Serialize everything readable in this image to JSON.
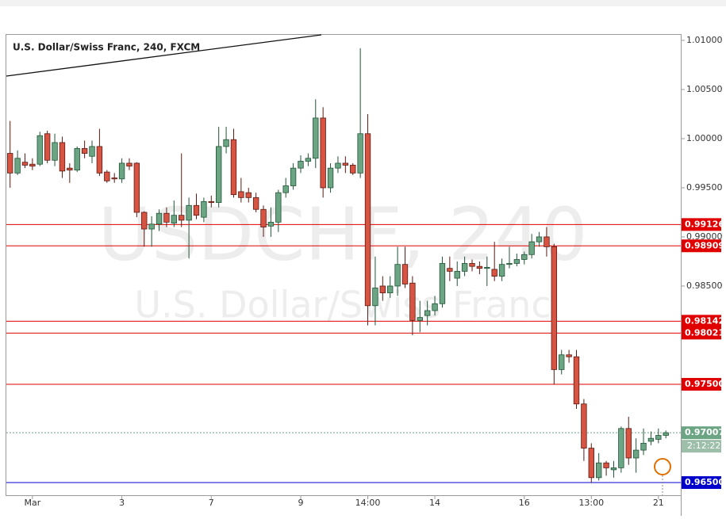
{
  "chart_data": {
    "type": "candlestick",
    "title": "U.S. Dollar/Swiss Franc, 240, FXCM",
    "watermark": "USDCHF, 240",
    "watermark_subtitle": "U.S. Dollar/Swiss Franc",
    "countdown": "2:12:22",
    "up_color": "#6ba583",
    "down_color": "#d75442",
    "open": [
      0.9985,
      0.9965,
      0.9976,
      0.9974,
      0.9974,
      1.0005,
      0.9978,
      0.9996,
      0.997,
      0.9968,
      0.999,
      0.9982,
      0.9992,
      0.9966,
      0.996,
      0.9959,
      0.9975,
      0.9975,
      0.9925,
      0.9908,
      0.9913,
      0.9924,
      0.9914,
      0.9922,
      0.9917,
      0.9932,
      0.992,
      0.9936,
      0.9935,
      0.9992,
      0.9999,
      0.9946,
      0.9945,
      0.994,
      0.9928,
      0.9911,
      0.9915,
      0.9945,
      0.9952,
      0.997,
      0.9977,
      0.998,
      1.0021,
      0.995,
      0.997,
      0.9975,
      0.9973,
      0.9965,
      1.0005,
      0.983,
      0.985,
      0.9843,
      0.985,
      0.9872,
      0.9853,
      0.9815,
      0.982,
      0.9825,
      0.9832,
      0.9868,
      0.9858,
      0.9865,
      0.9873,
      0.987,
      0.9868,
      0.9867,
      0.986,
      0.9872,
      0.9873,
      0.9877,
      0.9882,
      0.9895,
      0.99,
      0.989,
      0.9765,
      0.978,
      0.9778,
      0.973,
      0.9685,
      0.9655,
      0.967,
      0.9663,
      0.9665,
      0.9705,
      0.9675,
      0.9683,
      0.9692,
      0.9694,
      0.9698
    ],
    "high": [
      1.0018,
      0.9988,
      0.9985,
      0.998,
      1.0007,
      1.0008,
      1.0005,
      1.0002,
      0.9975,
      0.9992,
      0.9998,
      0.9998,
      1.001,
      0.9968,
      0.9965,
      0.998,
      0.998,
      0.9976,
      0.9926,
      0.9921,
      0.9928,
      0.993,
      0.9937,
      0.9985,
      0.994,
      0.9944,
      0.994,
      0.9942,
      1.0012,
      1.0012,
      1.001,
      0.996,
      0.995,
      0.9945,
      0.9932,
      0.993,
      0.9948,
      0.996,
      0.9975,
      0.9983,
      0.9985,
      1.004,
      1.0032,
      0.9975,
      0.9982,
      0.9982,
      0.9975,
      1.0092,
      1.0025,
      0.988,
      0.986,
      0.986,
      0.989,
      0.989,
      0.986,
      0.9835,
      0.9835,
      0.984,
      0.988,
      0.988,
      0.9875,
      0.988,
      0.9877,
      0.9875,
      0.988,
      0.9895,
      0.9878,
      0.989,
      0.9883,
      0.9885,
      0.9903,
      0.9905,
      0.991,
      0.9893,
      0.9785,
      0.9785,
      0.9785,
      0.9735,
      0.969,
      0.968,
      0.9672,
      0.9672,
      0.9707,
      0.9717,
      0.9695,
      0.9705,
      0.9702,
      0.9705,
      0.9703
    ],
    "low": [
      0.995,
      0.9963,
      0.997,
      0.9968,
      0.9972,
      0.9975,
      0.9972,
      0.996,
      0.9955,
      0.9966,
      0.998,
      0.9975,
      0.9962,
      0.9955,
      0.9955,
      0.9955,
      0.9968,
      0.992,
      0.989,
      0.989,
      0.9906,
      0.991,
      0.991,
      0.991,
      0.9878,
      0.9918,
      0.9915,
      0.993,
      0.993,
      0.9985,
      0.994,
      0.9935,
      0.9935,
      0.9925,
      0.99,
      0.99,
      0.9905,
      0.994,
      0.9948,
      0.9965,
      0.9972,
      0.997,
      0.994,
      0.9945,
      0.9965,
      0.9965,
      0.9963,
      0.996,
      0.981,
      0.981,
      0.9835,
      0.9838,
      0.984,
      0.9848,
      0.98,
      0.9803,
      0.981,
      0.982,
      0.9828,
      0.9855,
      0.985,
      0.986,
      0.9865,
      0.9862,
      0.985,
      0.9855,
      0.9855,
      0.9868,
      0.987,
      0.9872,
      0.9878,
      0.989,
      0.988,
      0.975,
      0.976,
      0.9772,
      0.9725,
      0.9672,
      0.965,
      0.9652,
      0.9657,
      0.9655,
      0.966,
      0.9668,
      0.966,
      0.9678,
      0.9688,
      0.969,
      0.9695
    ],
    "close": [
      0.9965,
      0.998,
      0.9973,
      0.9972,
      1.0003,
      0.9978,
      0.9996,
      0.9967,
      0.9968,
      0.999,
      0.9985,
      0.9992,
      0.9965,
      0.9957,
      0.9959,
      0.9975,
      0.9972,
      0.9925,
      0.9908,
      0.9913,
      0.9924,
      0.9915,
      0.9922,
      0.9917,
      0.9932,
      0.9922,
      0.9936,
      0.9935,
      0.9992,
      0.9999,
      0.9943,
      0.994,
      0.994,
      0.9928,
      0.991,
      0.9915,
      0.9945,
      0.9952,
      0.997,
      0.9977,
      0.998,
      1.0021,
      0.995,
      0.997,
      0.9975,
      0.9973,
      0.9965,
      1.0005,
      0.983,
      0.9848,
      0.9843,
      0.985,
      0.9872,
      0.9852,
      0.9815,
      0.9818,
      0.9825,
      0.9832,
      0.9873,
      0.9865,
      0.9865,
      0.9873,
      0.987,
      0.9868,
      0.9869,
      0.986,
      0.9872,
      0.9873,
      0.9877,
      0.9882,
      0.9895,
      0.99,
      0.989,
      0.9765,
      0.978,
      0.9778,
      0.973,
      0.9685,
      0.9655,
      0.967,
      0.9665,
      0.9665,
      0.9705,
      0.9675,
      0.9683,
      0.969,
      0.9695,
      0.9698,
      0.97007
    ],
    "xlim": [
      -0.5,
      90
    ],
    "xticks": [
      {
        "value": 3,
        "label": "Mar"
      },
      {
        "value": 15,
        "label": "3"
      },
      {
        "value": 27,
        "label": "7"
      },
      {
        "value": 39,
        "label": "9"
      },
      {
        "value": 48,
        "label": "14:00"
      },
      {
        "value": 57,
        "label": "14"
      },
      {
        "value": 69,
        "label": "16"
      },
      {
        "value": 78,
        "label": "13:00"
      },
      {
        "value": 87,
        "label": "21"
      }
    ],
    "ylim": [
      0.96371,
      1.01056
    ],
    "yticks": [
      {
        "value": 1.01,
        "label": "1.01000"
      },
      {
        "value": 1.005,
        "label": "1.00500"
      },
      {
        "value": 1.0,
        "label": "1.00000"
      },
      {
        "value": 0.995,
        "label": "0.99500"
      },
      {
        "value": 0.99,
        "label": "0.99000"
      },
      {
        "value": 0.985,
        "label": "0.98500"
      }
    ],
    "levels": [
      {
        "value": 0.99126,
        "label": "0.99126",
        "color": "#e00000"
      },
      {
        "value": 0.98909,
        "label": "0.98909",
        "color": "#e00000"
      },
      {
        "value": 0.98142,
        "label": "0.98142",
        "color": "#e00000"
      },
      {
        "value": 0.98021,
        "label": "0.98021",
        "color": "#e00000"
      },
      {
        "value": 0.975,
        "label": "0.97500",
        "color": "#e00000"
      },
      {
        "value": 0.965,
        "label": "0.96500",
        "color": "#0000cc"
      },
      {
        "value": 0.97007,
        "label": "0.97007",
        "color": "#6ba583"
      }
    ]
  }
}
